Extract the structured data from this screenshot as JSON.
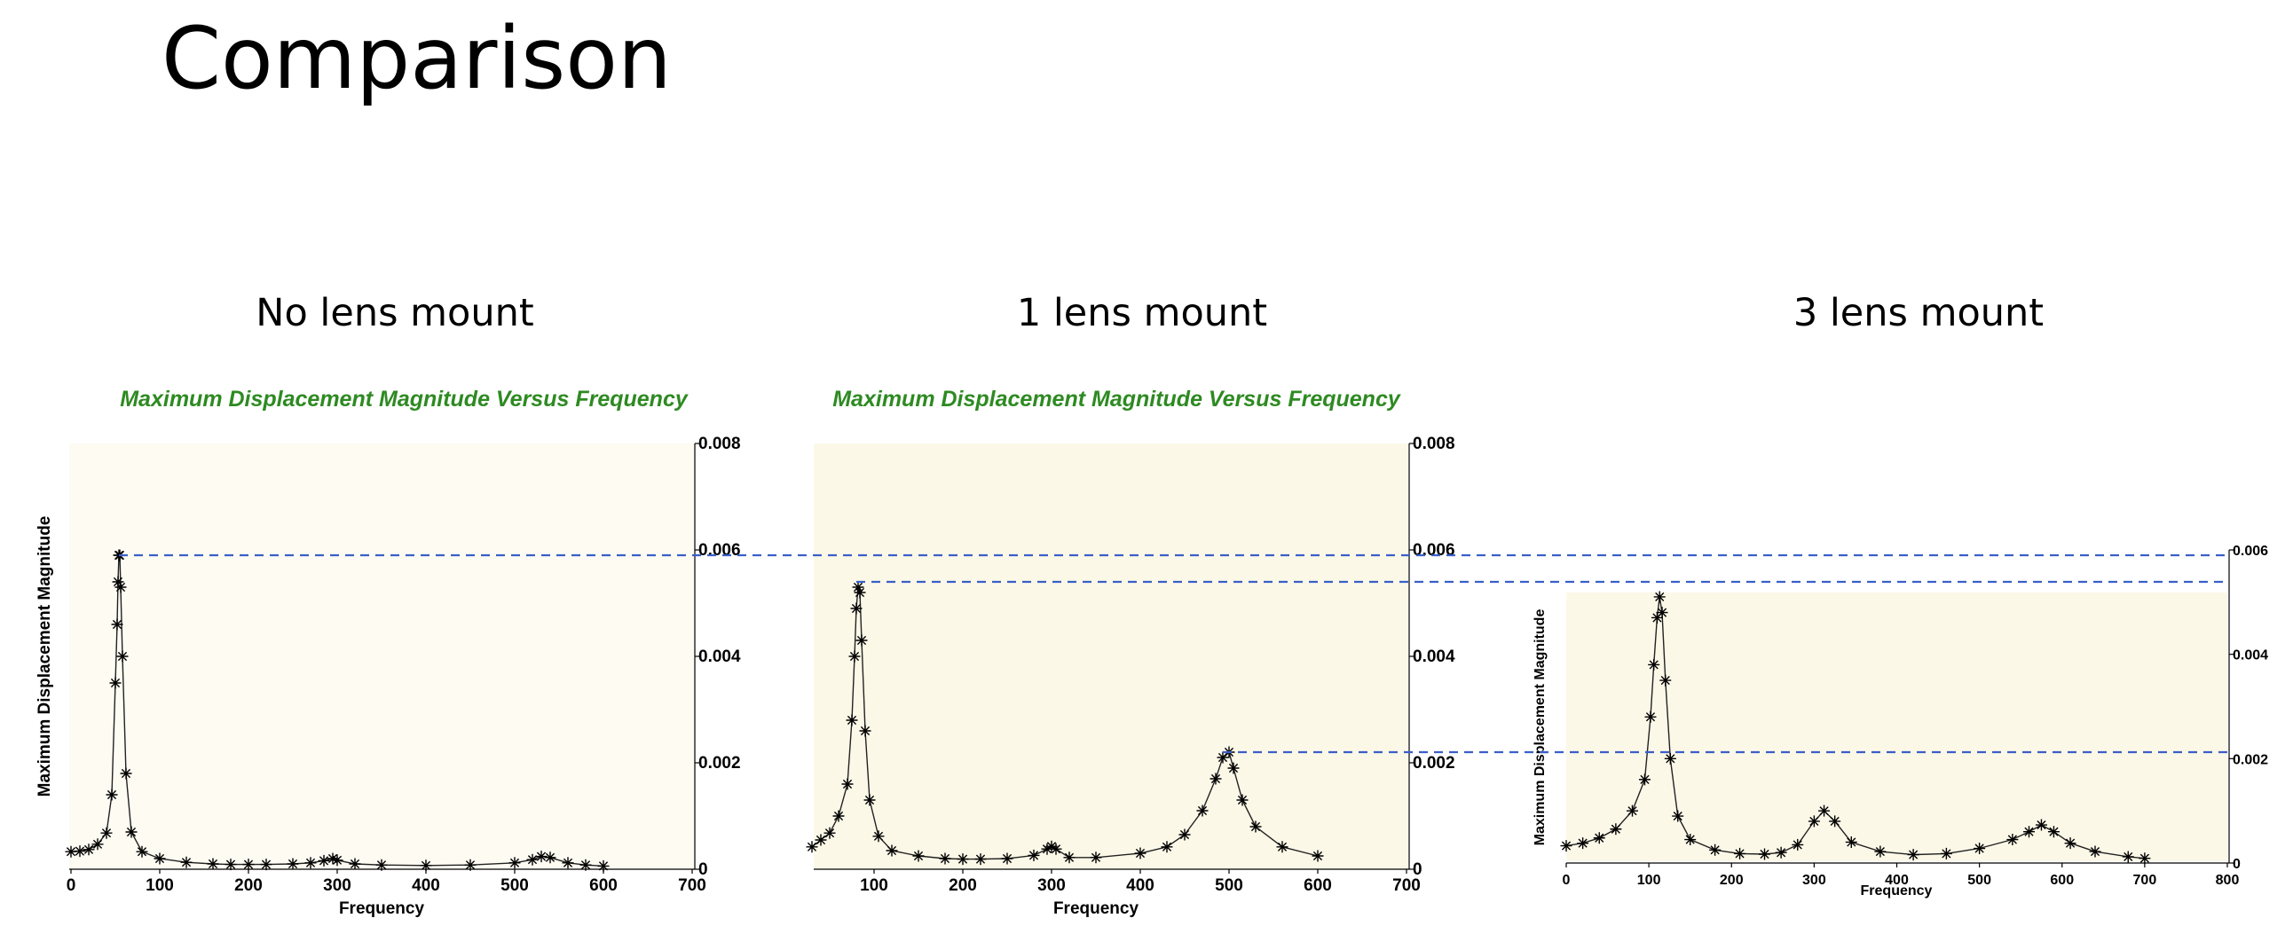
{
  "page": {
    "title": "Comparison"
  },
  "chart_data": [
    {
      "id": "no-lens",
      "type": "line",
      "subtitle": "No lens mount",
      "title": "Maximum Displacement Magnitude Versus Frequency",
      "xlabel": "Frequency",
      "ylabel": "Maximum Displacement Magnitude",
      "xlim": [
        0,
        700
      ],
      "ylim": [
        0,
        0.008
      ],
      "xticks": [
        "0",
        "100",
        "200",
        "300",
        "400",
        "500",
        "600",
        "700"
      ],
      "yticks": [
        "0",
        "0.002",
        "0.004",
        "0.006",
        "0.008"
      ],
      "yaxis_side": "right",
      "plot_bg": "#fdfbf2",
      "marker": "asterisk",
      "reference_level": 0.0059,
      "series": [
        {
          "points": [
            [
              0,
              0.00033
            ],
            [
              10,
              0.00034
            ],
            [
              20,
              0.00037
            ],
            [
              30,
              0.00047
            ],
            [
              40,
              0.00068
            ],
            [
              46,
              0.0014
            ],
            [
              50,
              0.0035
            ],
            [
              52,
              0.0046
            ],
            [
              53,
              0.0054
            ],
            [
              54,
              0.0059
            ],
            [
              55,
              0.0059
            ],
            [
              56,
              0.0053
            ],
            [
              58,
              0.004
            ],
            [
              62,
              0.0018
            ],
            [
              68,
              0.0007
            ],
            [
              80,
              0.00033
            ],
            [
              100,
              0.0002
            ],
            [
              130,
              0.00013
            ],
            [
              160,
              0.0001
            ],
            [
              180,
              9e-05
            ],
            [
              200,
              9e-05
            ],
            [
              220,
              9e-05
            ],
            [
              250,
              0.0001
            ],
            [
              270,
              0.00012
            ],
            [
              285,
              0.00016
            ],
            [
              295,
              0.0002
            ],
            [
              300,
              0.00017
            ],
            [
              320,
              0.0001
            ],
            [
              350,
              8e-05
            ],
            [
              400,
              7e-05
            ],
            [
              450,
              8e-05
            ],
            [
              500,
              0.00012
            ],
            [
              520,
              0.00018
            ],
            [
              530,
              0.00024
            ],
            [
              540,
              0.00022
            ],
            [
              560,
              0.00012
            ],
            [
              580,
              8e-05
            ],
            [
              600,
              6e-05
            ]
          ]
        }
      ]
    },
    {
      "id": "one-lens",
      "type": "line",
      "subtitle": "1 lens mount",
      "title": "Maximum Displacement Magnitude Versus Frequency",
      "xlabel": "Frequency",
      "ylabel": "",
      "xlim": [
        0,
        700
      ],
      "ylim": [
        0,
        0.008
      ],
      "xticks": [
        "100",
        "200",
        "300",
        "400",
        "500",
        "600",
        "700"
      ],
      "yticks": [
        "0",
        "0.002",
        "0.004",
        "0.006",
        "0.008"
      ],
      "yaxis_side": "right",
      "plot_bg": "#fcf8e8",
      "marker": "asterisk",
      "reference_levels": [
        0.0054,
        0.0022
      ],
      "series": [
        {
          "points": [
            [
              30,
              0.00042
            ],
            [
              40,
              0.00055
            ],
            [
              50,
              0.00068
            ],
            [
              60,
              0.001
            ],
            [
              70,
              0.0016
            ],
            [
              75,
              0.0028
            ],
            [
              78,
              0.004
            ],
            [
              80,
              0.0049
            ],
            [
              82,
              0.0053
            ],
            [
              84,
              0.0052
            ],
            [
              86,
              0.0043
            ],
            [
              90,
              0.0026
            ],
            [
              95,
              0.0013
            ],
            [
              105,
              0.00062
            ],
            [
              120,
              0.00035
            ],
            [
              150,
              0.00025
            ],
            [
              180,
              0.0002
            ],
            [
              200,
              0.00019
            ],
            [
              220,
              0.00019
            ],
            [
              250,
              0.0002
            ],
            [
              280,
              0.00026
            ],
            [
              295,
              0.00038
            ],
            [
              300,
              0.00043
            ],
            [
              305,
              0.00038
            ],
            [
              320,
              0.00022
            ],
            [
              350,
              0.00022
            ],
            [
              400,
              0.0003
            ],
            [
              430,
              0.00042
            ],
            [
              450,
              0.00065
            ],
            [
              470,
              0.0011
            ],
            [
              485,
              0.0017
            ],
            [
              493,
              0.0021
            ],
            [
              500,
              0.0022
            ],
            [
              505,
              0.0019
            ],
            [
              515,
              0.0013
            ],
            [
              530,
              0.0008
            ],
            [
              560,
              0.00042
            ],
            [
              600,
              0.00025
            ]
          ]
        }
      ]
    },
    {
      "id": "three-lens",
      "type": "line",
      "subtitle": "3 lens mount",
      "title": "",
      "xlabel": "Frequency",
      "ylabel": "Maximum Displacement Magnitude",
      "xlim": [
        0,
        800
      ],
      "ylim": [
        0,
        0.006
      ],
      "xticks": [
        "0",
        "100",
        "200",
        "300",
        "400",
        "500",
        "600",
        "700",
        "800"
      ],
      "yticks": [
        "0",
        "0.002",
        "0.004",
        "0.006"
      ],
      "yaxis_side": "right",
      "plot_bg": "#fcf8e8",
      "marker": "asterisk",
      "reference_levels": [
        0.0059,
        0.0054,
        0.0022
      ],
      "series": [
        {
          "points": [
            [
              0,
              0.00033
            ],
            [
              20,
              0.00038
            ],
            [
              40,
              0.00048
            ],
            [
              60,
              0.00065
            ],
            [
              80,
              0.001
            ],
            [
              95,
              0.0016
            ],
            [
              102,
              0.0028
            ],
            [
              106,
              0.0038
            ],
            [
              110,
              0.0047
            ],
            [
              113,
              0.0051
            ],
            [
              116,
              0.0048
            ],
            [
              120,
              0.0035
            ],
            [
              126,
              0.002
            ],
            [
              135,
              0.0009
            ],
            [
              150,
              0.00045
            ],
            [
              180,
              0.00025
            ],
            [
              210,
              0.00018
            ],
            [
              240,
              0.00017
            ],
            [
              260,
              0.0002
            ],
            [
              280,
              0.00035
            ],
            [
              300,
              0.0008
            ],
            [
              312,
              0.001
            ],
            [
              325,
              0.0008
            ],
            [
              345,
              0.0004
            ],
            [
              380,
              0.00022
            ],
            [
              420,
              0.00016
            ],
            [
              460,
              0.00018
            ],
            [
              500,
              0.00028
            ],
            [
              540,
              0.00045
            ],
            [
              560,
              0.0006
            ],
            [
              575,
              0.00073
            ],
            [
              590,
              0.0006
            ],
            [
              610,
              0.00038
            ],
            [
              640,
              0.00022
            ],
            [
              680,
              0.00012
            ],
            [
              700,
              9e-05
            ]
          ]
        }
      ]
    }
  ]
}
